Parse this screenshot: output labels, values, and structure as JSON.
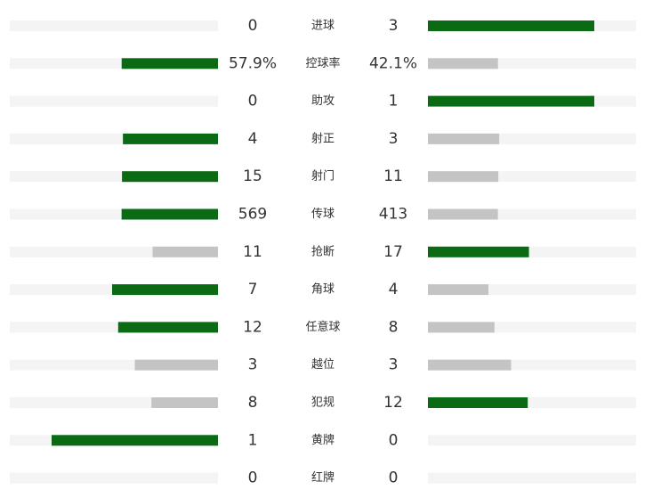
{
  "stats": {
    "leader_color": "#0a6b14",
    "other_color": "#c4c4c4",
    "rows": [
      {
        "label": "进球",
        "home": 0,
        "away": 3
      },
      {
        "label": "控球率",
        "home": 57.9,
        "away": 42.1,
        "home_label": "57.9%",
        "away_label": "42.1%"
      },
      {
        "label": "助攻",
        "home": 0,
        "away": 1
      },
      {
        "label": "射正",
        "home": 4,
        "away": 3
      },
      {
        "label": "射门",
        "home": 15,
        "away": 11
      },
      {
        "label": "传球",
        "home": 569,
        "away": 413
      },
      {
        "label": "抢断",
        "home": 11,
        "away": 17
      },
      {
        "label": "角球",
        "home": 7,
        "away": 4
      },
      {
        "label": "任意球",
        "home": 12,
        "away": 8
      },
      {
        "label": "越位",
        "home": 3,
        "away": 3
      },
      {
        "label": "犯规",
        "home": 8,
        "away": 12
      },
      {
        "label": "黄牌",
        "home": 1,
        "away": 0
      },
      {
        "label": "红牌",
        "home": 0,
        "away": 0
      }
    ]
  }
}
